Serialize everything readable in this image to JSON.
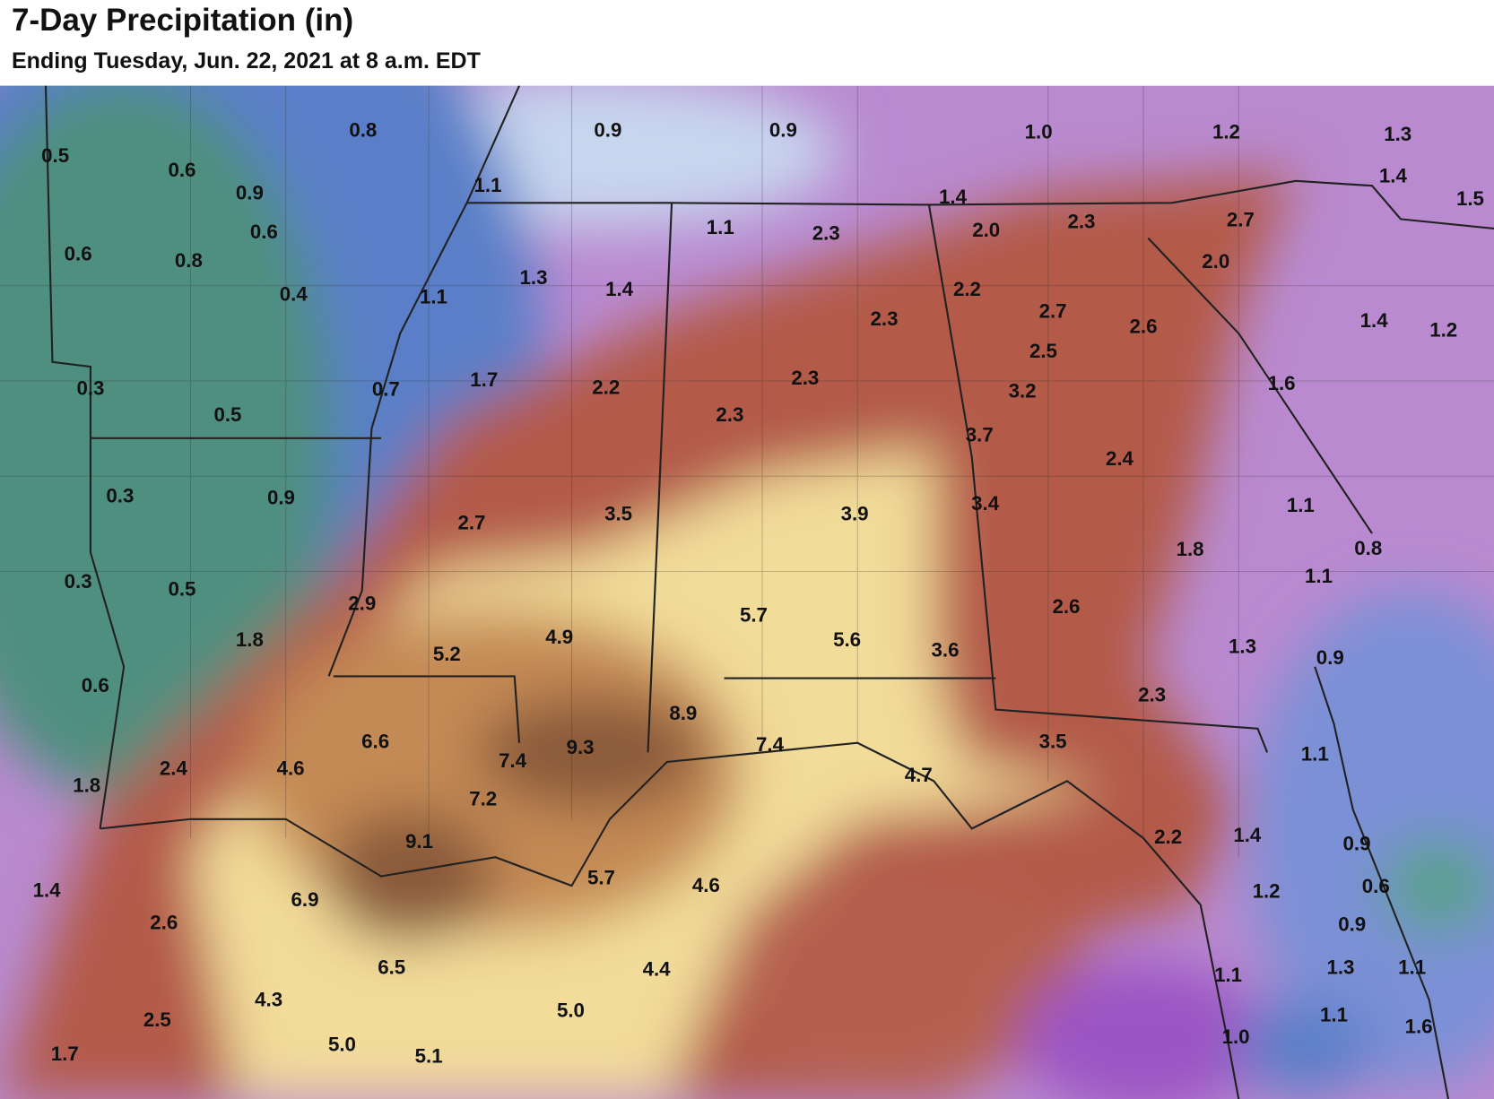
{
  "header": {
    "title": "7-Day Precipitation (in)",
    "subtitle": "Ending Tuesday, Jun. 22, 2021 at 8 a.m. EDT"
  },
  "map": {
    "labels": [
      "0.8",
      "0.9",
      "0.9",
      "1.0",
      "1.2",
      "1.3",
      "0.5",
      "0.6",
      "1.1",
      "1.4",
      "1.5",
      "0.9",
      "1.4",
      "2.7",
      "2.3",
      "0.6",
      "1.1",
      "2.3",
      "2.0",
      "0.6",
      "0.8",
      "2.0",
      "1.3",
      "1.4",
      "0.4",
      "1.1",
      "2.2",
      "2.3",
      "2.7",
      "2.6",
      "1.4",
      "1.2",
      "2.5",
      "0.3",
      "1.7",
      "0.7",
      "2.2",
      "2.3",
      "3.2",
      "1.6",
      "0.5",
      "2.3",
      "3.7",
      "2.4",
      "0.3",
      "0.9",
      "3.5",
      "3.9",
      "3.4",
      "1.1",
      "2.7",
      "1.8",
      "0.8",
      "0.3",
      "0.5",
      "2.9",
      "1.1",
      "2.6",
      "5.7",
      "4.9",
      "5.6",
      "1.8",
      "5.2",
      "3.6",
      "1.3",
      "0.9",
      "0.6",
      "2.3",
      "8.9",
      "6.6",
      "3.5",
      "1.1",
      "9.3",
      "7.4",
      "7.4",
      "1.8",
      "2.4",
      "4.6",
      "4.7",
      "7.2",
      "9.1",
      "2.2",
      "1.4",
      "0.9",
      "1.4",
      "6.9",
      "5.7",
      "4.6",
      "1.2",
      "0.6",
      "2.6",
      "0.9",
      "6.5",
      "4.4",
      "1.3",
      "1.1",
      "1.1",
      "4.3",
      "5.0",
      "2.5",
      "1.1",
      "1.6",
      "1.0",
      "1.7",
      "5.0",
      "5.1"
    ]
  }
}
